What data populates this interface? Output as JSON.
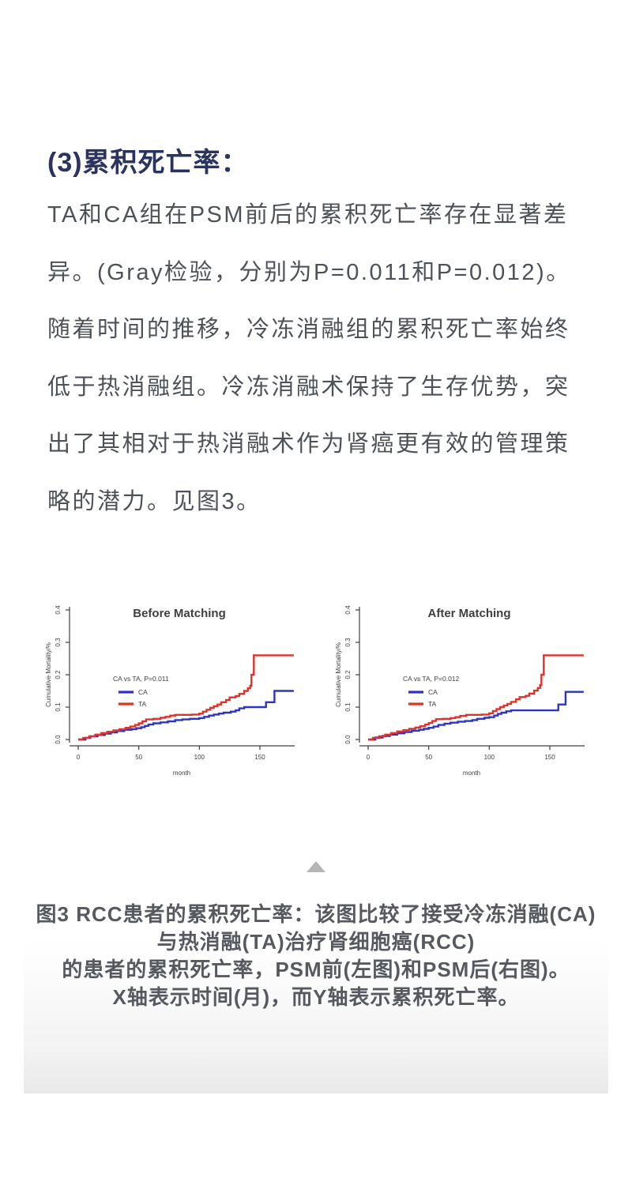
{
  "section": {
    "heading": "(3)累积死亡率：",
    "paragraph": "TA和CA组在PSM前后的累积死亡率存在显著差异。(Gray检验，分别为P=0.011和P=0.012)。随着时间的推移，冷冻消融组的累积死亡率始终低于热消融组。冷冻消融术保持了生存优势，突出了其相对于热消融术作为肾癌更有效的管理策略的潜力。见图3。"
  },
  "colors": {
    "heading": "#2b335f",
    "body_text": "#4d5258",
    "caption_text": "#56595f",
    "axis": "#3f3f3f",
    "ca_blue": "#2c35c3",
    "ta_red": "#e0312a",
    "collapse_arrow": "#b5b5b5"
  },
  "collapse": {
    "icon": "collapse-up-arrow"
  },
  "caption": {
    "lines": [
      "图3 RCC患者的累积死亡率：该图比较了接受冷冻消融(CA)",
      "与热消融(TA)治疗肾细胞癌(RCC)",
      "的患者的累积死亡率，PSM前(左图)和PSM后(右图)。",
      "X轴表示时间(月)，而Y轴表示累积死亡率。"
    ]
  },
  "chart_data": [
    {
      "type": "line",
      "title": "Before Matching",
      "xlabel": "month",
      "ylabel": "Cumulative Mortality/%",
      "xlim": [
        0,
        180
      ],
      "ylim": [
        0,
        0.4
      ],
      "xticks": [
        "0",
        "50",
        "100",
        "150"
      ],
      "yticks": [
        "0.0",
        "0.1",
        "0.2",
        "0.3",
        "0.4"
      ],
      "grid": false,
      "legend": {
        "title": "CA vs TA, P=0.011",
        "position": "left-middle"
      },
      "series": [
        {
          "name": "CA",
          "color": "#2c35c3",
          "step_points": [
            [
              0,
              0
            ],
            [
              6,
              0.005
            ],
            [
              10,
              0.01
            ],
            [
              16,
              0.014
            ],
            [
              22,
              0.018
            ],
            [
              27,
              0.022
            ],
            [
              32,
              0.026
            ],
            [
              38,
              0.03
            ],
            [
              44,
              0.032
            ],
            [
              48,
              0.035
            ],
            [
              52,
              0.038
            ],
            [
              55,
              0.042
            ],
            [
              58,
              0.046
            ],
            [
              62,
              0.05
            ],
            [
              68,
              0.053
            ],
            [
              74,
              0.056
            ],
            [
              80,
              0.06
            ],
            [
              86,
              0.062
            ],
            [
              92,
              0.064
            ],
            [
              100,
              0.066
            ],
            [
              104,
              0.07
            ],
            [
              108,
              0.074
            ],
            [
              112,
              0.077
            ],
            [
              116,
              0.08
            ],
            [
              120,
              0.083
            ],
            [
              126,
              0.086
            ],
            [
              130,
              0.09
            ],
            [
              133,
              0.096
            ],
            [
              137,
              0.1
            ],
            [
              155,
              0.115
            ],
            [
              162,
              0.15
            ],
            [
              178,
              0.15
            ]
          ]
        },
        {
          "name": "TA",
          "color": "#e0312a",
          "step_points": [
            [
              0,
              0
            ],
            [
              4,
              0.005
            ],
            [
              9,
              0.01
            ],
            [
              14,
              0.015
            ],
            [
              19,
              0.02
            ],
            [
              24,
              0.024
            ],
            [
              29,
              0.028
            ],
            [
              34,
              0.032
            ],
            [
              39,
              0.036
            ],
            [
              43,
              0.04
            ],
            [
              47,
              0.045
            ],
            [
              50,
              0.05
            ],
            [
              53,
              0.056
            ],
            [
              56,
              0.062
            ],
            [
              62,
              0.064
            ],
            [
              68,
              0.067
            ],
            [
              72,
              0.07
            ],
            [
              76,
              0.074
            ],
            [
              80,
              0.076
            ],
            [
              94,
              0.077
            ],
            [
              100,
              0.08
            ],
            [
              103,
              0.086
            ],
            [
              106,
              0.092
            ],
            [
              109,
              0.098
            ],
            [
              112,
              0.103
            ],
            [
              115,
              0.108
            ],
            [
              118,
              0.115
            ],
            [
              122,
              0.122
            ],
            [
              125,
              0.13
            ],
            [
              130,
              0.134
            ],
            [
              133,
              0.141
            ],
            [
              137,
              0.15
            ],
            [
              140,
              0.158
            ],
            [
              142,
              0.166
            ],
            [
              143,
              0.2
            ],
            [
              145,
              0.26
            ],
            [
              178,
              0.26
            ]
          ]
        }
      ]
    },
    {
      "type": "line",
      "title": "After Matching",
      "xlabel": "month",
      "ylabel": "Cumulative Mortality/%",
      "xlim": [
        0,
        180
      ],
      "ylim": [
        0,
        0.4
      ],
      "xticks": [
        "0",
        "50",
        "100",
        "150"
      ],
      "yticks": [
        "0.0",
        "0.1",
        "0.2",
        "0.3",
        "0.4"
      ],
      "grid": false,
      "legend": {
        "title": "CA vs TA, P=0.012",
        "position": "left-middle"
      },
      "series": [
        {
          "name": "CA",
          "color": "#2c35c3",
          "step_points": [
            [
              0,
              0
            ],
            [
              6,
              0.006
            ],
            [
              12,
              0.011
            ],
            [
              18,
              0.015
            ],
            [
              24,
              0.019
            ],
            [
              30,
              0.023
            ],
            [
              36,
              0.027
            ],
            [
              42,
              0.03
            ],
            [
              46,
              0.033
            ],
            [
              50,
              0.036
            ],
            [
              54,
              0.04
            ],
            [
              58,
              0.045
            ],
            [
              63,
              0.049
            ],
            [
              68,
              0.052
            ],
            [
              74,
              0.055
            ],
            [
              80,
              0.057
            ],
            [
              86,
              0.06
            ],
            [
              90,
              0.064
            ],
            [
              96,
              0.067
            ],
            [
              100,
              0.069
            ],
            [
              104,
              0.074
            ],
            [
              107,
              0.079
            ],
            [
              110,
              0.083
            ],
            [
              114,
              0.087
            ],
            [
              118,
              0.09
            ],
            [
              155,
              0.09
            ],
            [
              157,
              0.108
            ],
            [
              163,
              0.147
            ],
            [
              178,
              0.147
            ]
          ]
        },
        {
          "name": "TA",
          "color": "#e0312a",
          "step_points": [
            [
              0,
              0
            ],
            [
              4,
              0.005
            ],
            [
              9,
              0.01
            ],
            [
              14,
              0.015
            ],
            [
              19,
              0.02
            ],
            [
              24,
              0.025
            ],
            [
              29,
              0.029
            ],
            [
              34,
              0.033
            ],
            [
              39,
              0.037
            ],
            [
              43,
              0.041
            ],
            [
              47,
              0.046
            ],
            [
              50,
              0.051
            ],
            [
              53,
              0.057
            ],
            [
              56,
              0.063
            ],
            [
              62,
              0.064
            ],
            [
              68,
              0.066
            ],
            [
              72,
              0.069
            ],
            [
              76,
              0.073
            ],
            [
              81,
              0.076
            ],
            [
              94,
              0.077
            ],
            [
              100,
              0.081
            ],
            [
              103,
              0.088
            ],
            [
              106,
              0.094
            ],
            [
              109,
              0.1
            ],
            [
              112,
              0.105
            ],
            [
              115,
              0.11
            ],
            [
              118,
              0.116
            ],
            [
              122,
              0.124
            ],
            [
              125,
              0.131
            ],
            [
              130,
              0.135
            ],
            [
              133,
              0.142
            ],
            [
              137,
              0.151
            ],
            [
              140,
              0.159
            ],
            [
              142,
              0.168
            ],
            [
              143,
              0.2
            ],
            [
              145,
              0.26
            ],
            [
              178,
              0.26
            ]
          ]
        }
      ]
    }
  ]
}
